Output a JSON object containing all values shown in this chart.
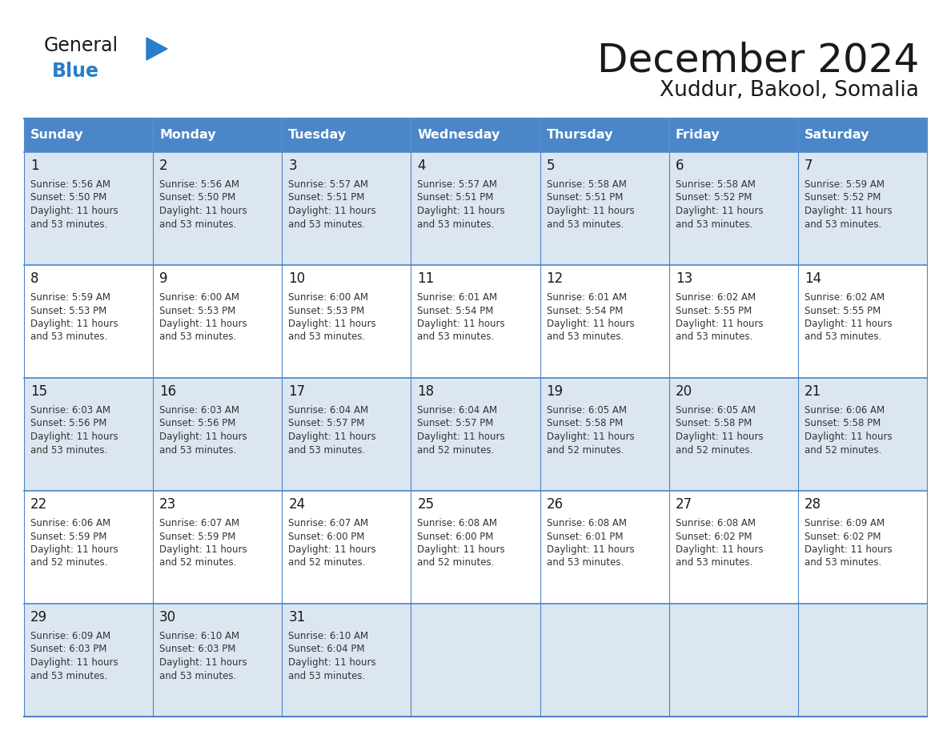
{
  "title": "December 2024",
  "subtitle": "Xuddur, Bakool, Somalia",
  "days_of_week": [
    "Sunday",
    "Monday",
    "Tuesday",
    "Wednesday",
    "Thursday",
    "Friday",
    "Saturday"
  ],
  "header_bg_color": "#4a86c8",
  "header_text_color": "#ffffff",
  "row_bg_colors": [
    "#dce6f1",
    "#ffffff"
  ],
  "border_color": "#4a86c8",
  "title_color": "#1a1a1a",
  "subtitle_color": "#1a1a1a",
  "cell_text_color": "#333333",
  "day_num_color": "#1a1a1a",
  "logo_general_color": "#1a1a1a",
  "logo_blue_color": "#2a7dc9",
  "logo_triangle_color": "#2a7dc9",
  "calendar_data": [
    [
      {
        "day": 1,
        "sunrise": "5:56 AM",
        "sunset": "5:50 PM",
        "daylight_l1": "11 hours",
        "daylight_l2": "and 53 minutes."
      },
      {
        "day": 2,
        "sunrise": "5:56 AM",
        "sunset": "5:50 PM",
        "daylight_l1": "11 hours",
        "daylight_l2": "and 53 minutes."
      },
      {
        "day": 3,
        "sunrise": "5:57 AM",
        "sunset": "5:51 PM",
        "daylight_l1": "11 hours",
        "daylight_l2": "and 53 minutes."
      },
      {
        "day": 4,
        "sunrise": "5:57 AM",
        "sunset": "5:51 PM",
        "daylight_l1": "11 hours",
        "daylight_l2": "and 53 minutes."
      },
      {
        "day": 5,
        "sunrise": "5:58 AM",
        "sunset": "5:51 PM",
        "daylight_l1": "11 hours",
        "daylight_l2": "and 53 minutes."
      },
      {
        "day": 6,
        "sunrise": "5:58 AM",
        "sunset": "5:52 PM",
        "daylight_l1": "11 hours",
        "daylight_l2": "and 53 minutes."
      },
      {
        "day": 7,
        "sunrise": "5:59 AM",
        "sunset": "5:52 PM",
        "daylight_l1": "11 hours",
        "daylight_l2": "and 53 minutes."
      }
    ],
    [
      {
        "day": 8,
        "sunrise": "5:59 AM",
        "sunset": "5:53 PM",
        "daylight_l1": "11 hours",
        "daylight_l2": "and 53 minutes."
      },
      {
        "day": 9,
        "sunrise": "6:00 AM",
        "sunset": "5:53 PM",
        "daylight_l1": "11 hours",
        "daylight_l2": "and 53 minutes."
      },
      {
        "day": 10,
        "sunrise": "6:00 AM",
        "sunset": "5:53 PM",
        "daylight_l1": "11 hours",
        "daylight_l2": "and 53 minutes."
      },
      {
        "day": 11,
        "sunrise": "6:01 AM",
        "sunset": "5:54 PM",
        "daylight_l1": "11 hours",
        "daylight_l2": "and 53 minutes."
      },
      {
        "day": 12,
        "sunrise": "6:01 AM",
        "sunset": "5:54 PM",
        "daylight_l1": "11 hours",
        "daylight_l2": "and 53 minutes."
      },
      {
        "day": 13,
        "sunrise": "6:02 AM",
        "sunset": "5:55 PM",
        "daylight_l1": "11 hours",
        "daylight_l2": "and 53 minutes."
      },
      {
        "day": 14,
        "sunrise": "6:02 AM",
        "sunset": "5:55 PM",
        "daylight_l1": "11 hours",
        "daylight_l2": "and 53 minutes."
      }
    ],
    [
      {
        "day": 15,
        "sunrise": "6:03 AM",
        "sunset": "5:56 PM",
        "daylight_l1": "11 hours",
        "daylight_l2": "and 53 minutes."
      },
      {
        "day": 16,
        "sunrise": "6:03 AM",
        "sunset": "5:56 PM",
        "daylight_l1": "11 hours",
        "daylight_l2": "and 53 minutes."
      },
      {
        "day": 17,
        "sunrise": "6:04 AM",
        "sunset": "5:57 PM",
        "daylight_l1": "11 hours",
        "daylight_l2": "and 53 minutes."
      },
      {
        "day": 18,
        "sunrise": "6:04 AM",
        "sunset": "5:57 PM",
        "daylight_l1": "11 hours",
        "daylight_l2": "and 52 minutes."
      },
      {
        "day": 19,
        "sunrise": "6:05 AM",
        "sunset": "5:58 PM",
        "daylight_l1": "11 hours",
        "daylight_l2": "and 52 minutes."
      },
      {
        "day": 20,
        "sunrise": "6:05 AM",
        "sunset": "5:58 PM",
        "daylight_l1": "11 hours",
        "daylight_l2": "and 52 minutes."
      },
      {
        "day": 21,
        "sunrise": "6:06 AM",
        "sunset": "5:58 PM",
        "daylight_l1": "11 hours",
        "daylight_l2": "and 52 minutes."
      }
    ],
    [
      {
        "day": 22,
        "sunrise": "6:06 AM",
        "sunset": "5:59 PM",
        "daylight_l1": "11 hours",
        "daylight_l2": "and 52 minutes."
      },
      {
        "day": 23,
        "sunrise": "6:07 AM",
        "sunset": "5:59 PM",
        "daylight_l1": "11 hours",
        "daylight_l2": "and 52 minutes."
      },
      {
        "day": 24,
        "sunrise": "6:07 AM",
        "sunset": "6:00 PM",
        "daylight_l1": "11 hours",
        "daylight_l2": "and 52 minutes."
      },
      {
        "day": 25,
        "sunrise": "6:08 AM",
        "sunset": "6:00 PM",
        "daylight_l1": "11 hours",
        "daylight_l2": "and 52 minutes."
      },
      {
        "day": 26,
        "sunrise": "6:08 AM",
        "sunset": "6:01 PM",
        "daylight_l1": "11 hours",
        "daylight_l2": "and 53 minutes."
      },
      {
        "day": 27,
        "sunrise": "6:08 AM",
        "sunset": "6:02 PM",
        "daylight_l1": "11 hours",
        "daylight_l2": "and 53 minutes."
      },
      {
        "day": 28,
        "sunrise": "6:09 AM",
        "sunset": "6:02 PM",
        "daylight_l1": "11 hours",
        "daylight_l2": "and 53 minutes."
      }
    ],
    [
      {
        "day": 29,
        "sunrise": "6:09 AM",
        "sunset": "6:03 PM",
        "daylight_l1": "11 hours",
        "daylight_l2": "and 53 minutes."
      },
      {
        "day": 30,
        "sunrise": "6:10 AM",
        "sunset": "6:03 PM",
        "daylight_l1": "11 hours",
        "daylight_l2": "and 53 minutes."
      },
      {
        "day": 31,
        "sunrise": "6:10 AM",
        "sunset": "6:04 PM",
        "daylight_l1": "11 hours",
        "daylight_l2": "and 53 minutes."
      },
      null,
      null,
      null,
      null
    ]
  ]
}
